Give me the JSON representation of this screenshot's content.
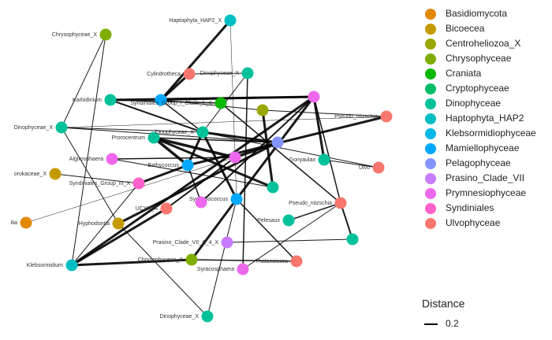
{
  "legend": {
    "groups": [
      {
        "name": "Basidiomycota",
        "color": "#E38900"
      },
      {
        "name": "Bicoecea",
        "color": "#C49A00"
      },
      {
        "name": "Centroheliozoa_X",
        "color": "#99A800"
      },
      {
        "name": "Chrysophyceae",
        "color": "#7FAE00"
      },
      {
        "name": "Craniata",
        "color": "#0CB702"
      },
      {
        "name": "Cryptophyceae",
        "color": "#00BE67"
      },
      {
        "name": "Dinophyceae",
        "color": "#00C19A"
      },
      {
        "name": "Haptophyta_HAP2",
        "color": "#00BFC4"
      },
      {
        "name": "Klebsormidiophyceae",
        "color": "#00B8E7"
      },
      {
        "name": "Mamiellophyceae",
        "color": "#00A9FF"
      },
      {
        "name": "Pelagophyceae",
        "color": "#8494FF"
      },
      {
        "name": "Prasino_Clade_VII",
        "color": "#C77CFF"
      },
      {
        "name": "Prymnesiophyceae",
        "color": "#ED68ED"
      },
      {
        "name": "Syndiniales",
        "color": "#FF61CC"
      },
      {
        "name": "Ulvophyceae",
        "color": "#F8766D"
      }
    ],
    "distance_title": "Distance",
    "distance_ticks": [
      0.2
    ]
  },
  "nodes": [
    {
      "label": "Haptophyta_HAP2_X",
      "group": 7
    },
    {
      "label": "Chrysophyceae_X",
      "group": 3
    },
    {
      "label": "Cylindrotheca",
      "group": 14
    },
    {
      "label": "Dinophyceae_X",
      "group": 6
    },
    {
      "label": "Karlodinium",
      "group": 6
    },
    {
      "label": null,
      "group": 9
    },
    {
      "label": "Syndiniales_Group_I_Clade_1_X",
      "group": 4
    },
    {
      "label": null,
      "group": 2
    },
    {
      "label": null,
      "group": 12
    },
    {
      "label": "Pseudo_nitzschia",
      "group": 14
    },
    {
      "label": "Dinophyceae_X",
      "group": 6
    },
    {
      "label": "Prorocentrum",
      "group": 6
    },
    {
      "label": "Dinophyceae_X",
      "group": 6
    },
    {
      "label": null,
      "group": 10
    },
    {
      "label": "Gonyaulax",
      "group": 6
    },
    {
      "label": "Ulvo",
      "group": 14
    },
    {
      "label": "orokaceae_X",
      "group": 1
    },
    {
      "label": "Algirosphaera",
      "group": 12
    },
    {
      "label": "Bathycoccus",
      "group": 9
    },
    {
      "label": null,
      "group": 12
    },
    {
      "label": "Syndiniales_Group_III_X",
      "group": 13
    },
    {
      "label": null,
      "group": 6
    },
    {
      "label": "Synechococcus",
      "group": 9
    },
    {
      "label": null,
      "group": 12
    },
    {
      "label": "Pseudo_nitzschia",
      "group": 14
    },
    {
      "label": "ilia",
      "group": 0
    },
    {
      "label": "Hyphodontia",
      "group": 1
    },
    {
      "label": "Pelesaux",
      "group": 6
    },
    {
      "label": "Prasino_Clade_VII_A_4_X",
      "group": 11
    },
    {
      "label": null,
      "group": 6
    },
    {
      "label": "Thalassiosira",
      "group": 14
    },
    {
      "label": "Chrysophyceae_X",
      "group": 3
    },
    {
      "label": "Syracosphaera",
      "group": 12
    },
    {
      "label": "Klebsormidium",
      "group": 7
    },
    {
      "label": "Dinophyceae_X",
      "group": 6
    },
    {
      "label": "UCYN_A",
      "group": 14
    }
  ],
  "edges": [
    {
      "source": 2,
      "target": 5,
      "distance": 0.3
    },
    {
      "source": 1,
      "target": 10,
      "distance": 0.1
    },
    {
      "source": 1,
      "target": 33,
      "distance": 0.1
    },
    {
      "source": 0,
      "target": 5,
      "distance": 0.3
    },
    {
      "source": 0,
      "target": 22,
      "distance": 0.05
    },
    {
      "source": 4,
      "target": 8,
      "distance": 0.3
    },
    {
      "source": 4,
      "target": 6,
      "distance": 0.15
    },
    {
      "source": 5,
      "target": 7,
      "distance": 0.1
    },
    {
      "source": 5,
      "target": 12,
      "distance": 0.15
    },
    {
      "source": 10,
      "target": 12,
      "distance": 0.1
    },
    {
      "source": 10,
      "target": 13,
      "distance": 0.1
    },
    {
      "source": 10,
      "target": 26,
      "distance": 0.1
    },
    {
      "source": 11,
      "target": 18,
      "distance": 0.35
    },
    {
      "source": 11,
      "target": 19,
      "distance": 0.35
    },
    {
      "source": 11,
      "target": 21,
      "distance": 0.3
    },
    {
      "source": 11,
      "target": 13,
      "distance": 0.15
    },
    {
      "source": 12,
      "target": 13,
      "distance": 0.3
    },
    {
      "source": 12,
      "target": 18,
      "distance": 0.3
    },
    {
      "source": 13,
      "target": 19,
      "distance": 0.35
    },
    {
      "source": 8,
      "target": 22,
      "distance": 0.3
    },
    {
      "source": 8,
      "target": 24,
      "distance": 0.15
    },
    {
      "source": 8,
      "target": 14,
      "distance": 0.3
    },
    {
      "source": 9,
      "target": 7,
      "distance": 0.1
    },
    {
      "source": 9,
      "target": 18,
      "distance": 0.3
    },
    {
      "source": 14,
      "target": 15,
      "distance": 0.1
    },
    {
      "source": 15,
      "target": 12,
      "distance": 0.1
    },
    {
      "source": 17,
      "target": 19,
      "distance": 0.15
    },
    {
      "source": 17,
      "target": 21,
      "distance": 0.1
    },
    {
      "source": 16,
      "target": 20,
      "distance": 0.1
    },
    {
      "source": 20,
      "target": 18,
      "distance": 0.3
    },
    {
      "source": 20,
      "target": 33,
      "distance": 0.1
    },
    {
      "source": 22,
      "target": 30,
      "distance": 0.15
    },
    {
      "source": 22,
      "target": 31,
      "distance": 0.3
    },
    {
      "source": 22,
      "target": 34,
      "distance": 0.1
    },
    {
      "source": 24,
      "target": 29,
      "distance": 0.2
    },
    {
      "source": 24,
      "target": 32,
      "distance": 0.1
    },
    {
      "source": 25,
      "target": 19,
      "distance": 0.05
    },
    {
      "source": 26,
      "target": 13,
      "distance": 0.3
    },
    {
      "source": 26,
      "target": 34,
      "distance": 0.1
    },
    {
      "source": 27,
      "target": 24,
      "distance": 0.15
    },
    {
      "source": 28,
      "target": 29,
      "distance": 0.1
    },
    {
      "source": 31,
      "target": 33,
      "distance": 0.3
    },
    {
      "source": 31,
      "target": 30,
      "distance": 0.15
    },
    {
      "source": 32,
      "target": 3,
      "distance": 0.15
    },
    {
      "source": 3,
      "target": 2,
      "distance": 0.1
    },
    {
      "source": 6,
      "target": 24,
      "distance": 0.15
    },
    {
      "source": 7,
      "target": 21,
      "distance": 0.3
    },
    {
      "source": 23,
      "target": 18,
      "distance": 0.15
    },
    {
      "source": 23,
      "target": 8,
      "distance": 0.2
    },
    {
      "source": 12,
      "target": 22,
      "distance": 0.3
    },
    {
      "source": 3,
      "target": 12,
      "distance": 0.1
    },
    {
      "source": 10,
      "target": 9,
      "distance": 0.05
    },
    {
      "source": 33,
      "target": 8,
      "distance": 0.3
    },
    {
      "source": 35,
      "target": 19,
      "distance": 0.2
    },
    {
      "source": 35,
      "target": 33,
      "distance": 0.3
    },
    {
      "source": 5,
      "target": 8,
      "distance": 0.2
    },
    {
      "source": 4,
      "target": 12,
      "distance": 0.2
    }
  ]
}
